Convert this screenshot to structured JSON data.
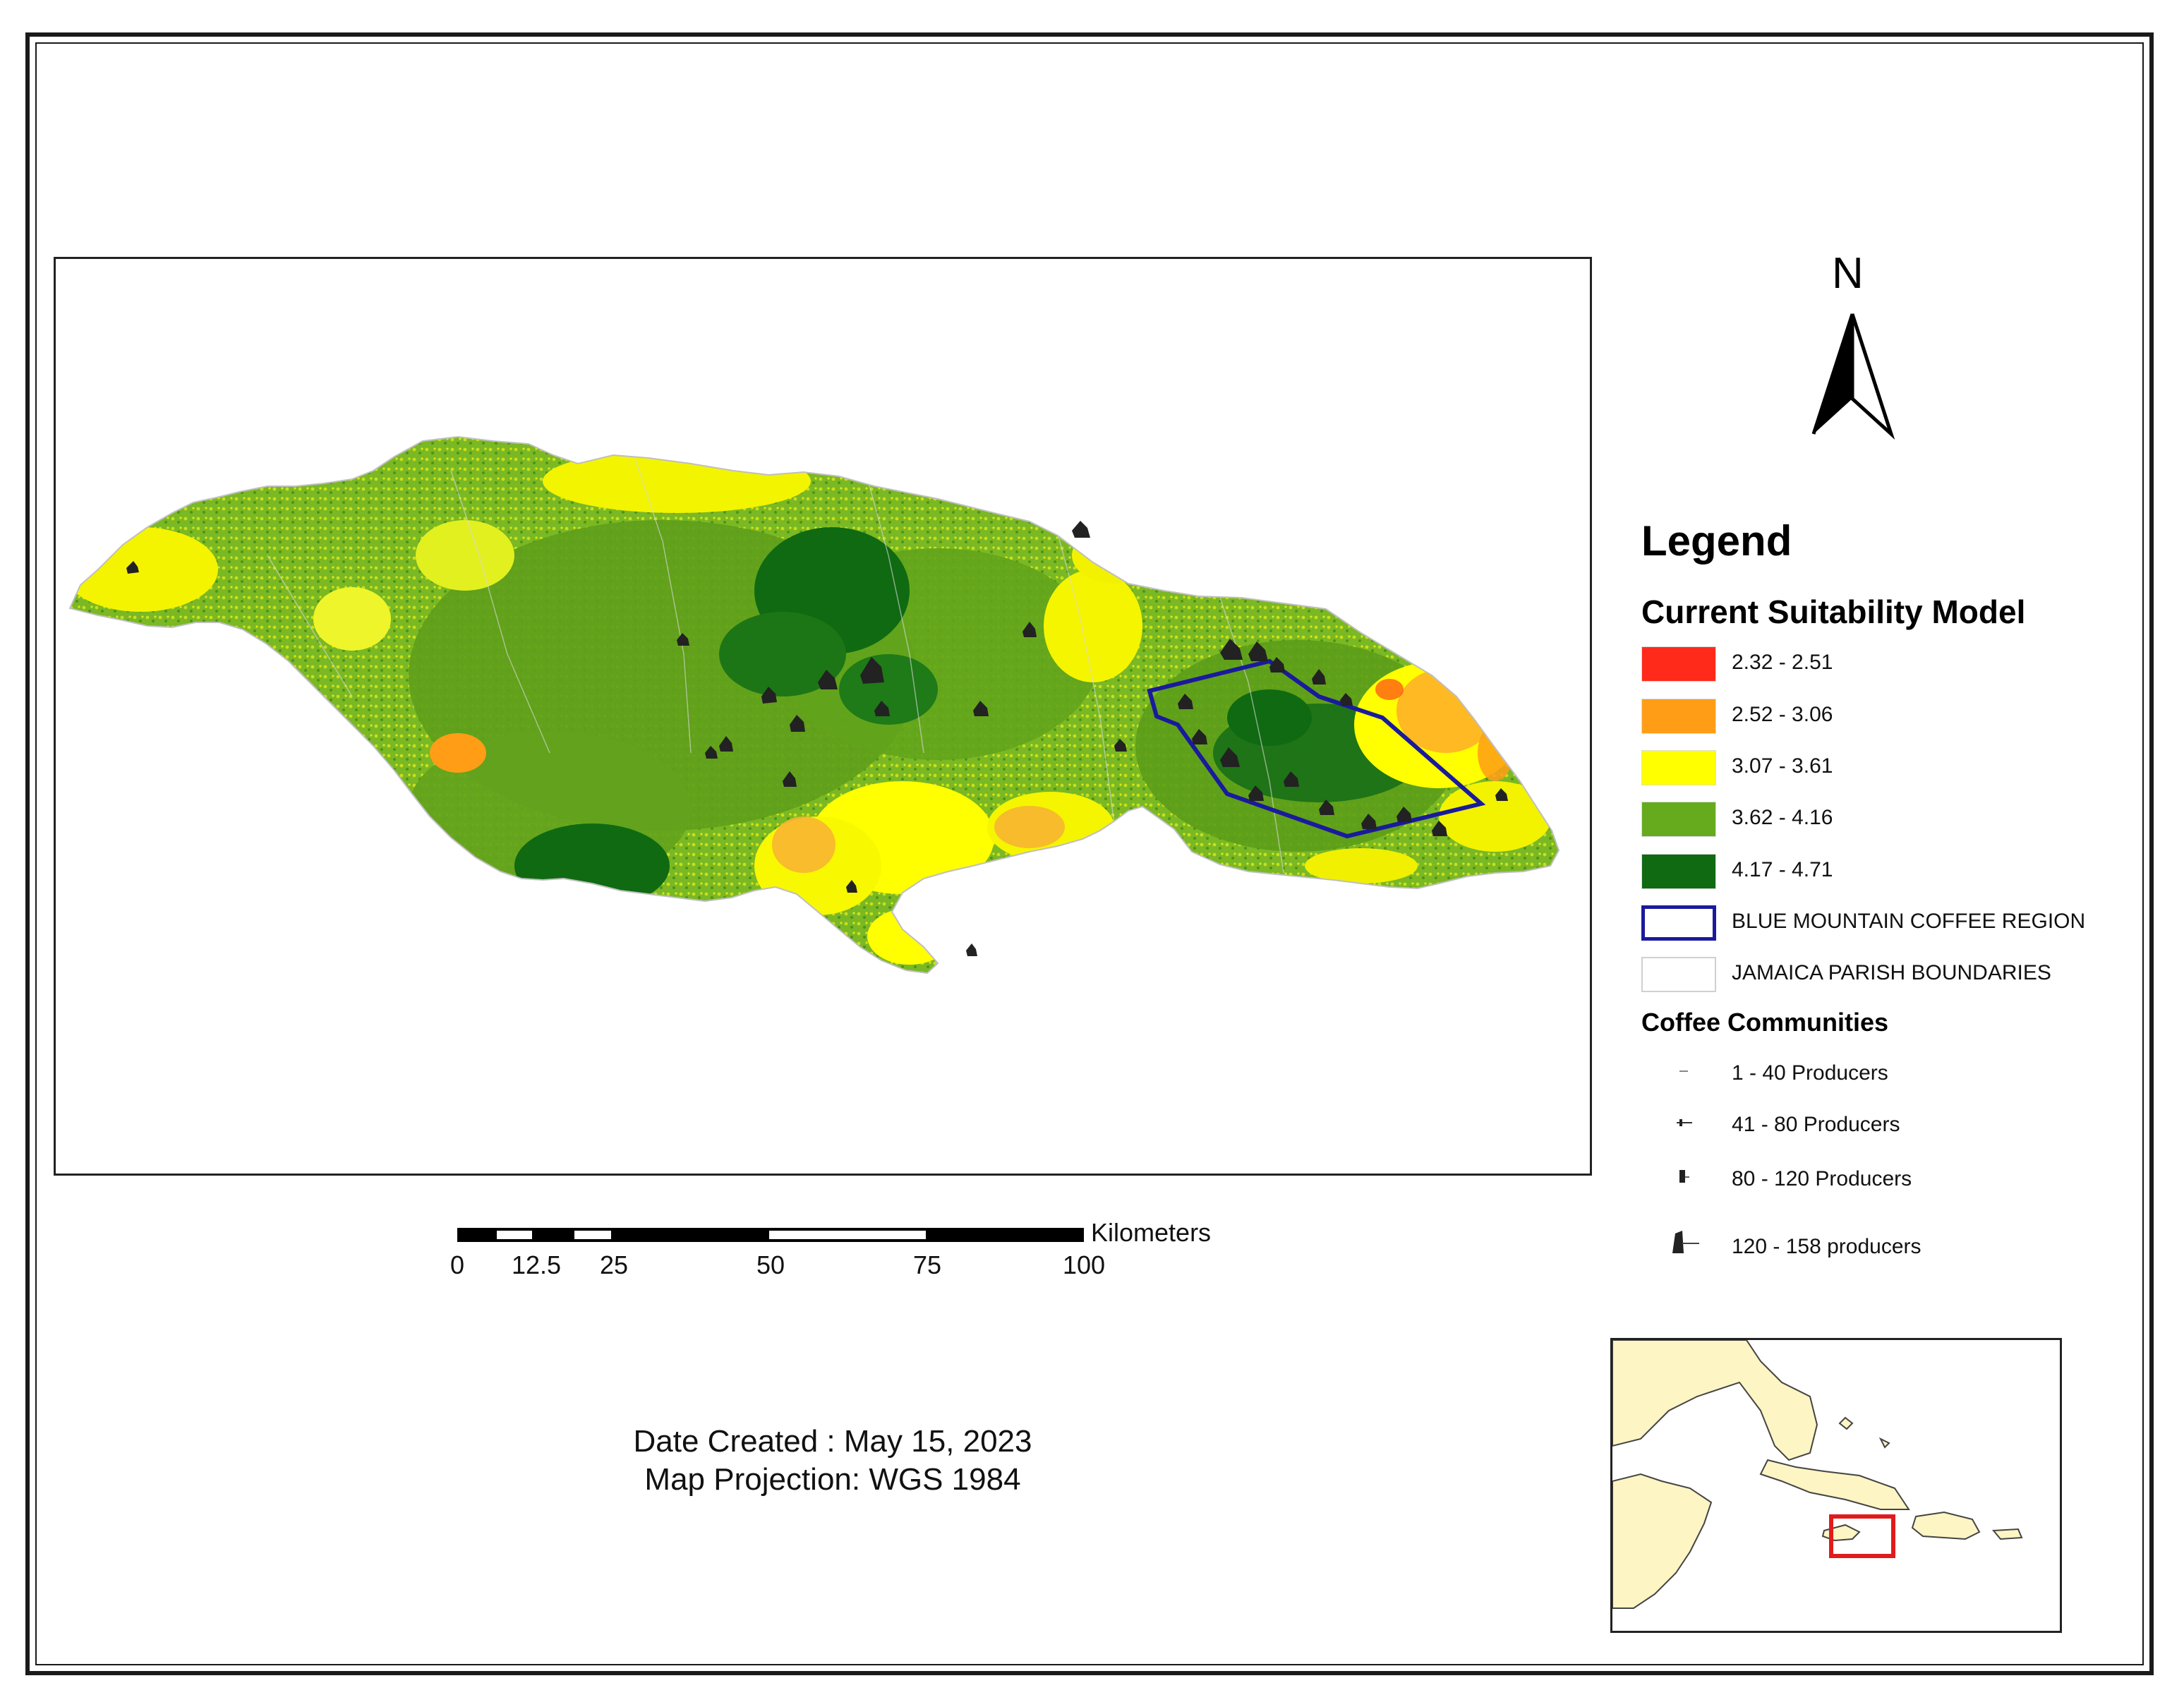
{
  "north": {
    "label": "N",
    "icon": "north-arrow-icon"
  },
  "legend": {
    "title": "Legend",
    "suitability_title": "Current Suitability Model",
    "classes": [
      {
        "label": "2.32 - 2.51",
        "color": "#ff2a1a"
      },
      {
        "label": "2.52 - 3.06",
        "color": "#ff9e16"
      },
      {
        "label": "3.07 - 3.61",
        "color": "#ffff00"
      },
      {
        "label": "3.62 - 4.16",
        "color": "#66aa1e"
      },
      {
        "label": "4.17 - 4.71",
        "color": "#0f6a12"
      }
    ],
    "region_label": "BLUE MOUNTAIN COFFEE REGION",
    "region_color": "#1a1a9c",
    "parish_label": "JAMAICA PARISH BOUNDARIES",
    "communities_title": "Coffee Communities",
    "communities": [
      {
        "label": "1 - 40 Producers"
      },
      {
        "label": "41 - 80 Producers"
      },
      {
        "label": "80 - 120 Producers"
      },
      {
        "label": "120 - 158 producers"
      }
    ]
  },
  "scale": {
    "unit": "Kilometers",
    "ticks": [
      "0",
      "12.5",
      "25",
      "50",
      "75",
      "100"
    ]
  },
  "meta": {
    "date": "Date Created : May 15, 2023",
    "projection": "Map Projection: WGS 1984"
  },
  "inset": {
    "highlight_color": "#e01b1b",
    "land_color": "#fdf5c3"
  }
}
